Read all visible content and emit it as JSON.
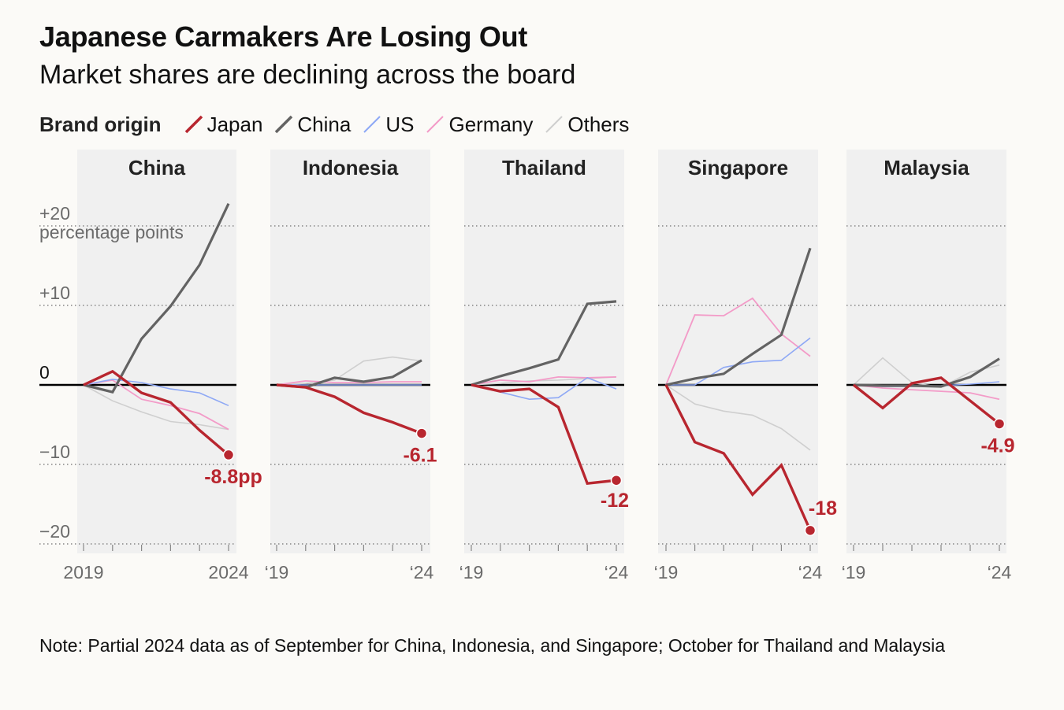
{
  "header": {
    "title": "Japanese Carmakers Are Losing Out",
    "subtitle": "Market shares are declining across the board"
  },
  "legend": {
    "title": "Brand origin",
    "items": [
      {
        "label": "Japan",
        "color": "#b8262f"
      },
      {
        "label": "China",
        "color": "#636363"
      },
      {
        "label": "US",
        "color": "#8ea8f5"
      },
      {
        "label": "Germany",
        "color": "#f39bc8"
      },
      {
        "label": "Others",
        "color": "#cfcfcf"
      }
    ]
  },
  "axis": {
    "unit_label": "percentage points",
    "y_ticks": [
      {
        "value": 20,
        "label": "+20"
      },
      {
        "value": 10,
        "label": "+10"
      },
      {
        "value": 0,
        "label": "0"
      },
      {
        "value": -10,
        "label": "−10"
      },
      {
        "value": -20,
        "label": "−20"
      }
    ]
  },
  "chart_data": [
    {
      "type": "line",
      "title": "China",
      "ylabel": "percentage points",
      "ylim": [
        -20,
        22
      ],
      "x": [
        2019,
        2020,
        2021,
        2022,
        2023,
        2024
      ],
      "x_tick_labels": [
        "2019",
        "2024"
      ],
      "grid": true,
      "series": [
        {
          "name": "Others",
          "values": [
            0,
            -2.0,
            -3.4,
            -4.6,
            -5.0,
            -5.6
          ]
        },
        {
          "name": "Germany",
          "values": [
            0,
            0.6,
            -1.8,
            -2.6,
            -3.6,
            -5.6
          ]
        },
        {
          "name": "US",
          "values": [
            0,
            0.7,
            0.3,
            -0.5,
            -1.0,
            -2.6
          ]
        },
        {
          "name": "China",
          "values": [
            0,
            -0.9,
            5.8,
            9.9,
            15.1,
            22.8
          ]
        },
        {
          "name": "Japan",
          "values": [
            0,
            1.7,
            -1.0,
            -2.2,
            -5.7,
            -8.8
          ]
        }
      ],
      "end_label": "-8.8pp"
    },
    {
      "type": "line",
      "title": "Indonesia",
      "ylim": [
        -20,
        22
      ],
      "x": [
        2019,
        2020,
        2021,
        2022,
        2023,
        2024
      ],
      "x_tick_labels": [
        "‘19",
        "‘24"
      ],
      "grid": true,
      "series": [
        {
          "name": "Others",
          "values": [
            0,
            0.2,
            0.6,
            3.0,
            3.5,
            3.0
          ]
        },
        {
          "name": "Germany",
          "values": [
            0,
            0.5,
            0.3,
            0.3,
            0.4,
            0.4
          ]
        },
        {
          "name": "US",
          "values": [
            0,
            0.0,
            0.0,
            0.0,
            0.0,
            0.0
          ]
        },
        {
          "name": "China",
          "values": [
            0,
            -0.3,
            0.9,
            0.4,
            1.0,
            3.1
          ]
        },
        {
          "name": "Japan",
          "values": [
            0,
            -0.3,
            -1.5,
            -3.5,
            -4.7,
            -6.1
          ]
        }
      ],
      "end_label": "-6.1"
    },
    {
      "type": "line",
      "title": "Thailand",
      "ylim": [
        -20,
        22
      ],
      "x": [
        2019,
        2020,
        2021,
        2022,
        2023,
        2024
      ],
      "x_tick_labels": [
        "‘19",
        "‘24"
      ],
      "grid": true,
      "series": [
        {
          "name": "Others",
          "values": [
            0,
            0.2,
            0.5,
            0.6,
            0.8,
            1.0
          ]
        },
        {
          "name": "Germany",
          "values": [
            0,
            0.6,
            0.4,
            1.0,
            0.9,
            1.0
          ]
        },
        {
          "name": "US",
          "values": [
            0,
            -0.9,
            -1.8,
            -1.6,
            0.9,
            -0.5
          ]
        },
        {
          "name": "China",
          "values": [
            0,
            1.1,
            2.1,
            3.2,
            10.2,
            10.5
          ]
        },
        {
          "name": "Japan",
          "values": [
            0,
            -0.8,
            -0.5,
            -2.8,
            -12.4,
            -12.0
          ]
        }
      ],
      "end_label": "-12"
    },
    {
      "type": "line",
      "title": "Singapore",
      "ylim": [
        -20,
        22
      ],
      "x": [
        2019,
        2020,
        2021,
        2022,
        2023,
        2024
      ],
      "x_tick_labels": [
        "‘19",
        "‘24"
      ],
      "grid": true,
      "series": [
        {
          "name": "Others",
          "values": [
            0,
            -2.4,
            -3.3,
            -3.8,
            -5.5,
            -8.2
          ]
        },
        {
          "name": "Germany",
          "values": [
            0,
            8.8,
            8.7,
            10.9,
            6.4,
            3.6
          ]
        },
        {
          "name": "US",
          "values": [
            0,
            0.0,
            2.2,
            2.9,
            3.1,
            5.9
          ]
        },
        {
          "name": "China",
          "values": [
            0,
            0.8,
            1.4,
            3.9,
            6.3,
            17.2
          ]
        },
        {
          "name": "Japan",
          "values": [
            0,
            -7.2,
            -8.6,
            -13.8,
            -10.1,
            -18.3
          ]
        }
      ],
      "end_label": "-18"
    },
    {
      "type": "line",
      "title": "Malaysia",
      "ylim": [
        -20,
        22
      ],
      "x": [
        2019,
        2020,
        2021,
        2022,
        2023,
        2024
      ],
      "x_tick_labels": [
        "‘19",
        "‘24"
      ],
      "grid": true,
      "series": [
        {
          "name": "Others",
          "values": [
            0,
            3.4,
            0.3,
            -0.3,
            1.6,
            2.5
          ]
        },
        {
          "name": "Germany",
          "values": [
            0,
            -0.4,
            -0.6,
            -0.8,
            -1.0,
            -1.8
          ]
        },
        {
          "name": "US",
          "values": [
            0,
            -0.2,
            -0.2,
            -0.1,
            0.1,
            0.4
          ]
        },
        {
          "name": "China",
          "values": [
            0,
            -0.1,
            -0.1,
            -0.2,
            1.0,
            3.3
          ]
        },
        {
          "name": "Japan",
          "values": [
            0,
            -2.9,
            0.2,
            0.9,
            -2.0,
            -4.9
          ]
        }
      ],
      "end_label": "-4.9"
    }
  ],
  "note": "Note: Partial 2024 data as of September for China, Indonesia, and Singapore; October for Thailand and Malaysia"
}
